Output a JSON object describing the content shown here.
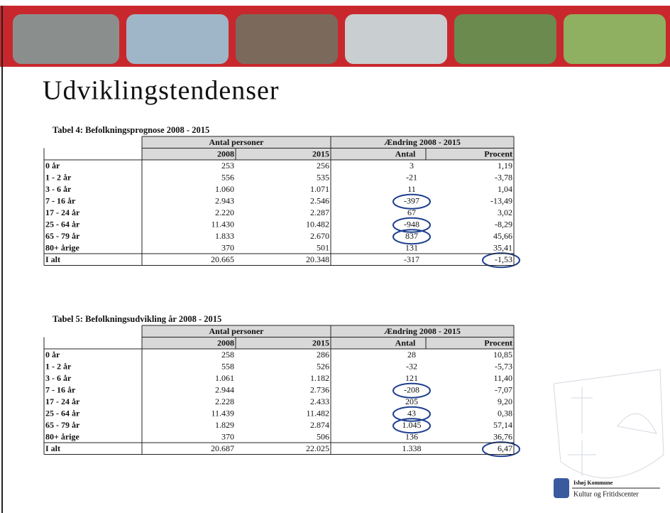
{
  "header": {
    "title": "Udviklingstendenser"
  },
  "tables": [
    {
      "caption": "Tabel 4: Befolkningsprognose 2008 - 2015",
      "groups": [
        "Antal personer",
        "Ændring 2008 - 2015"
      ],
      "columns": [
        "2008",
        "2015",
        "Antal",
        "Procent"
      ],
      "rows": [
        [
          "0 år",
          "253",
          "256",
          "3",
          "1,19"
        ],
        [
          "1 - 2 år",
          "556",
          "535",
          "-21",
          "-3,78"
        ],
        [
          "3 - 6 år",
          "1.060",
          "1.071",
          "11",
          "1,04"
        ],
        [
          "7 - 16 år",
          "2.943",
          "2.546",
          "-397",
          "-13,49"
        ],
        [
          "17 - 24 år",
          "2.220",
          "2.287",
          "67",
          "3,02"
        ],
        [
          "25 - 64 år",
          "11.430",
          "10.482",
          "-948",
          "-8,29"
        ],
        [
          "65 - 79 år",
          "1.833",
          "2.670",
          "837",
          "45,66"
        ],
        [
          "80+ årige",
          "370",
          "501",
          "131",
          "35,41"
        ],
        [
          "I alt",
          "20.665",
          "20.348",
          "-317",
          "-1,53"
        ]
      ]
    },
    {
      "caption": "Tabel 5: Befolkningsudvikling år 2008 - 2015",
      "groups": [
        "Antal personer",
        "Ændring 2008 - 2015"
      ],
      "columns": [
        "2008",
        "2015",
        "Antal",
        "Procent"
      ],
      "rows": [
        [
          "0 år",
          "258",
          "286",
          "28",
          "10,85"
        ],
        [
          "1 - 2 år",
          "558",
          "526",
          "-32",
          "-5,73"
        ],
        [
          "3 - 6 år",
          "1.061",
          "1.182",
          "121",
          "11,40"
        ],
        [
          "7 - 16 år",
          "2.944",
          "2.736",
          "-208",
          "-7,07"
        ],
        [
          "17 - 24 år",
          "2.228",
          "2.433",
          "205",
          "9,20"
        ],
        [
          "25 - 64 år",
          "11.439",
          "11.482",
          "43",
          "0,38"
        ],
        [
          "65 - 79 år",
          "1.829",
          "2.874",
          "1.045",
          "57,14"
        ],
        [
          "80+ årige",
          "370",
          "506",
          "136",
          "36,76"
        ],
        [
          "I alt",
          "20.687",
          "22.025",
          "1.338",
          "6,47"
        ]
      ]
    }
  ],
  "footer": {
    "org": "Ishøj Kommune",
    "unit": "Kultur og Fritidscenter"
  }
}
